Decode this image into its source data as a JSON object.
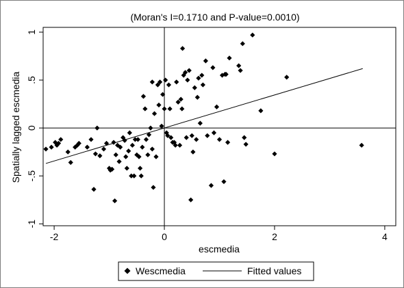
{
  "chart_data": {
    "type": "scatter",
    "title": "(Moran's I=0.1710 and P-value=0.0010)",
    "xlabel": "escmedia",
    "ylabel": "Spatially lagged escmedia",
    "xlim": [
      -2.2,
      4.2
    ],
    "ylim": [
      -1.02,
      1.05
    ],
    "x_ticks": [
      -2,
      0,
      2,
      4
    ],
    "x_tick_labels": [
      "-2",
      "0",
      "2",
      "4"
    ],
    "y_ticks": [
      -1,
      -0.5,
      0,
      0.5,
      1
    ],
    "y_tick_labels": [
      "-1",
      "-.5",
      "0",
      ".5",
      "1"
    ],
    "grid": false,
    "reference_lines": {
      "x": 0,
      "y": 0
    },
    "legend_position": "bottom",
    "series": [
      {
        "name": "Wescmedia",
        "kind": "scatter",
        "marker": "diamond",
        "color": "#000000",
        "points": [
          [
            -2.15,
            -0.22
          ],
          [
            -2.05,
            -0.2
          ],
          [
            -1.98,
            -0.15
          ],
          [
            -1.95,
            -0.18
          ],
          [
            -1.92,
            -0.16
          ],
          [
            -1.88,
            -0.12
          ],
          [
            -1.75,
            -0.25
          ],
          [
            -1.7,
            -0.36
          ],
          [
            -1.62,
            -0.2
          ],
          [
            -1.58,
            -0.18
          ],
          [
            -1.55,
            -0.16
          ],
          [
            -1.4,
            -0.2
          ],
          [
            -1.33,
            -0.12
          ],
          [
            -1.28,
            -0.64
          ],
          [
            -1.25,
            -0.27
          ],
          [
            -1.22,
            0.0
          ],
          [
            -1.17,
            -0.29
          ],
          [
            -1.1,
            -0.22
          ],
          [
            -1.05,
            -0.16
          ],
          [
            -1.0,
            -0.42
          ],
          [
            -0.98,
            -0.44
          ],
          [
            -0.95,
            -0.43
          ],
          [
            -0.92,
            -0.15
          ],
          [
            -0.9,
            -0.76
          ],
          [
            -0.88,
            -0.28
          ],
          [
            -0.85,
            -0.18
          ],
          [
            -0.82,
            -0.35
          ],
          [
            -0.8,
            -0.2
          ],
          [
            -0.75,
            -0.1
          ],
          [
            -0.72,
            -0.13
          ],
          [
            -0.7,
            -0.3
          ],
          [
            -0.68,
            -0.42
          ],
          [
            -0.65,
            -0.24
          ],
          [
            -0.63,
            -0.05
          ],
          [
            -0.6,
            -0.5
          ],
          [
            -0.58,
            -0.18
          ],
          [
            -0.55,
            -0.5
          ],
          [
            -0.53,
            -0.12
          ],
          [
            -0.5,
            -0.28
          ],
          [
            -0.48,
            -0.12
          ],
          [
            -0.46,
            -0.3
          ],
          [
            -0.44,
            -0.42
          ],
          [
            -0.42,
            -0.5
          ],
          [
            -0.4,
            -0.2
          ],
          [
            -0.38,
            0.33
          ],
          [
            -0.35,
            0.2
          ],
          [
            -0.33,
            -0.12
          ],
          [
            -0.3,
            -0.28
          ],
          [
            -0.28,
            -0.07
          ],
          [
            -0.25,
            0.0
          ],
          [
            -0.22,
            -0.22
          ],
          [
            -0.22,
            0.48
          ],
          [
            -0.2,
            -0.62
          ],
          [
            -0.18,
            0.15
          ],
          [
            -0.15,
            -0.3
          ],
          [
            -0.12,
            0.45
          ],
          [
            -0.1,
            0.24
          ],
          [
            -0.08,
            0.48
          ],
          [
            -0.05,
            0.02
          ],
          [
            -0.03,
            0.35
          ],
          [
            0.0,
            0.2
          ],
          [
            0.02,
            0.5
          ],
          [
            0.04,
            -0.05
          ],
          [
            0.06,
            -0.08
          ],
          [
            0.08,
            0.45
          ],
          [
            0.1,
            0.2
          ],
          [
            0.12,
            -0.1
          ],
          [
            0.15,
            -0.15
          ],
          [
            0.18,
            -0.15
          ],
          [
            0.2,
            -0.18
          ],
          [
            0.22,
            0.48
          ],
          [
            0.25,
            0.27
          ],
          [
            0.28,
            -0.18
          ],
          [
            0.3,
            0.3
          ],
          [
            0.32,
            0.2
          ],
          [
            0.33,
            0.83
          ],
          [
            0.35,
            0.55
          ],
          [
            0.38,
            0.58
          ],
          [
            0.4,
            -0.1
          ],
          [
            0.42,
            0.5
          ],
          [
            0.45,
            0.6
          ],
          [
            0.48,
            -0.75
          ],
          [
            0.5,
            -0.08
          ],
          [
            0.52,
            -0.25
          ],
          [
            0.55,
            0.42
          ],
          [
            0.58,
            -0.12
          ],
          [
            0.6,
            0.32
          ],
          [
            0.62,
            0.52
          ],
          [
            0.65,
            0.05
          ],
          [
            0.68,
            0.55
          ],
          [
            0.7,
            0.45
          ],
          [
            0.75,
            0.7
          ],
          [
            0.78,
            -0.08
          ],
          [
            0.85,
            -0.6
          ],
          [
            0.88,
            0.63
          ],
          [
            0.9,
            -0.05
          ],
          [
            0.95,
            0.22
          ],
          [
            1.0,
            -0.12
          ],
          [
            1.05,
            0.55
          ],
          [
            1.08,
            -0.56
          ],
          [
            1.1,
            0.56
          ],
          [
            1.12,
            0.56
          ],
          [
            1.15,
            -0.15
          ],
          [
            1.18,
            0.73
          ],
          [
            1.35,
            0.65
          ],
          [
            1.38,
            0.6
          ],
          [
            1.42,
            0.88
          ],
          [
            1.45,
            -0.1
          ],
          [
            1.48,
            -0.17
          ],
          [
            1.6,
            0.97
          ],
          [
            1.75,
            0.18
          ],
          [
            2.0,
            -0.27
          ],
          [
            2.22,
            0.53
          ],
          [
            3.58,
            -0.18
          ]
        ]
      },
      {
        "name": "Fitted values",
        "kind": "line",
        "color": "#000000",
        "x": [
          -2.15,
          3.6
        ],
        "y": [
          -0.37,
          0.62
        ]
      }
    ]
  }
}
